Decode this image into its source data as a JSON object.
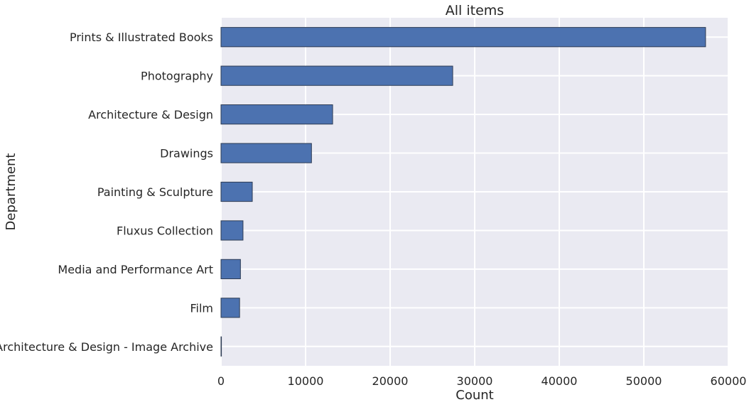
{
  "chart_data": {
    "type": "bar",
    "orientation": "horizontal",
    "title": "All items",
    "xlabel": "Count",
    "ylabel": "Department",
    "categories": [
      "Prints & Illustrated Books",
      "Photography",
      "Architecture & Design",
      "Drawings",
      "Painting & Sculpture",
      "Fluxus Collection",
      "Media and Performance Art",
      "Film",
      "Architecture & Design - Image Archive"
    ],
    "values": [
      57300,
      27400,
      13200,
      10700,
      3700,
      2600,
      2300,
      2200,
      20
    ],
    "xlim": [
      0,
      60000
    ],
    "xticks": [
      0,
      10000,
      20000,
      30000,
      40000,
      50000,
      60000
    ],
    "xtick_labels": [
      "0",
      "10000",
      "20000",
      "30000",
      "40000",
      "50000",
      "60000"
    ],
    "grid": true,
    "colors": {
      "bar": "#4c72b0",
      "bar_edge": "#2f3d55",
      "plot_background": "#eaeaf2",
      "grid": "#ffffff"
    }
  }
}
